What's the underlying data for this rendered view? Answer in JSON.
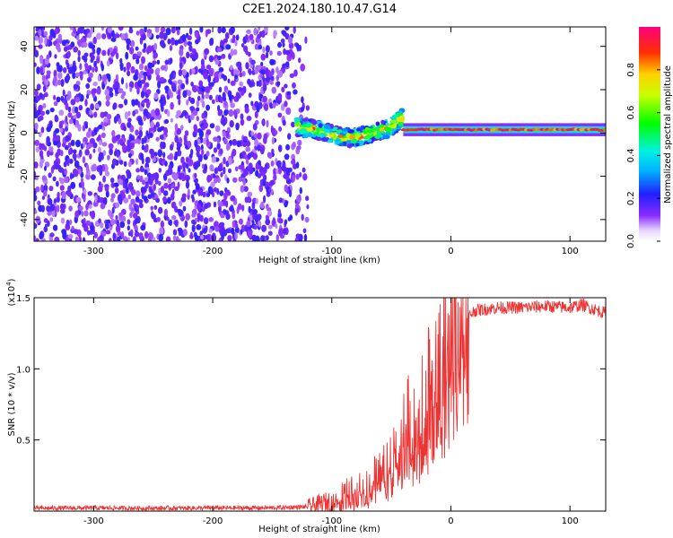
{
  "title": "C2E1.2024.180.10.47.G14",
  "chart_data": [
    {
      "type": "heatmap",
      "title": "C2E1.2024.180.10.47.G14",
      "xlabel": "Height of straight line (km)",
      "ylabel": "Frequency (Hz)",
      "xlim": [
        -350,
        130
      ],
      "ylim": [
        -50,
        49
      ],
      "xticks": [
        -300,
        -200,
        -100,
        0,
        100
      ],
      "xtick_labels": [
        "-300",
        "-200",
        "-100",
        "0",
        "100"
      ],
      "yticks": [
        -40,
        -20,
        0,
        20,
        40
      ],
      "ytick_labels": [
        "-40",
        "-20",
        "0",
        "20",
        "40"
      ],
      "grid": false,
      "colormap": "rainbow (violet to red/magenta)",
      "colorbar": {
        "label": "Normalized spectral amplitude",
        "range": [
          0,
          1
        ],
        "ticks": [
          0.0,
          0.2,
          0.4,
          0.6,
          0.8
        ],
        "tick_labels": [
          "0.0",
          "0.2",
          "0.4",
          "0.6",
          "0.8"
        ]
      },
      "features": [
        {
          "region_x": [
            -350,
            -120
          ],
          "freq_range": [
            -50,
            49
          ],
          "amplitude_range": [
            0.0,
            0.2
          ]
        },
        {
          "region_x": [
            -130,
            -40
          ],
          "freq_center": [
            3,
            2,
            0,
            -2,
            -2,
            0,
            2,
            7
          ],
          "amplitude_range": [
            0.2,
            0.9
          ]
        },
        {
          "region_x": [
            -40,
            130
          ],
          "freq_center": 1.5,
          "amplitude_range": [
            0.8,
            1.0
          ]
        }
      ]
    },
    {
      "type": "line",
      "xlabel": "Height of straight line (km)",
      "ylabel": "SNR (10 * v/v)",
      "y_scale_label": "(x10",
      "y_scale_exp": "4",
      "y_scale_close": ")",
      "xlim": [
        -350,
        130
      ],
      "ylim": [
        0,
        15000
      ],
      "xticks": [
        -300,
        -200,
        -100,
        0,
        100
      ],
      "xtick_labels": [
        "-300",
        "-200",
        "-100",
        "0",
        "100"
      ],
      "yticks": [
        5000,
        10000,
        15000
      ],
      "ytick_labels": [
        "0.5",
        "1.0",
        "1.5"
      ],
      "grid": false,
      "series": [
        {
          "color": "#ee3333",
          "x": [
            -350,
            -300,
            -250,
            -200,
            -150,
            -120,
            -100,
            -90,
            -80,
            -70,
            -60,
            -50,
            -40,
            -30,
            -20,
            -10,
            -5,
            0,
            5,
            10,
            20,
            30,
            40,
            60,
            80,
            100,
            110,
            130
          ],
          "y": [
            200,
            220,
            200,
            220,
            230,
            300,
            700,
            1200,
            1500,
            1900,
            2500,
            3500,
            5500,
            6500,
            8000,
            10500,
            11500,
            12000,
            12800,
            13300,
            14100,
            14200,
            14300,
            14300,
            14400,
            14300,
            14500,
            13900
          ]
        }
      ]
    }
  ]
}
